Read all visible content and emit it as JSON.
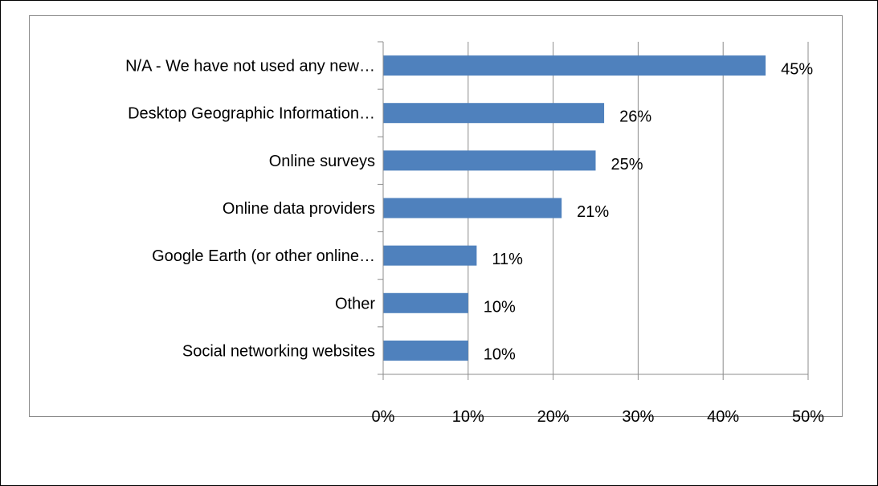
{
  "chart_data": {
    "type": "bar",
    "orientation": "horizontal",
    "categories": [
      "N/A - We have not used any new…",
      "Desktop Geographic Information…",
      "Online surveys",
      "Online data providers",
      "Google Earth (or other online…",
      "Other",
      "Social networking websites"
    ],
    "values": [
      45,
      26,
      25,
      21,
      11,
      10,
      10
    ],
    "data_labels": [
      "45%",
      "26%",
      "25%",
      "21%",
      "11%",
      "10%",
      "10%"
    ],
    "xlim": [
      0,
      50
    ],
    "x_ticks": [
      0,
      10,
      20,
      30,
      40,
      50
    ],
    "x_tick_labels": [
      "0%",
      "10%",
      "20%",
      "30%",
      "40%",
      "50%"
    ],
    "grid": "vertical",
    "legend": "none",
    "colors": {
      "bar": "#4f81bd",
      "grid": "#8c8c8c",
      "axis": "#8c8c8c"
    }
  }
}
